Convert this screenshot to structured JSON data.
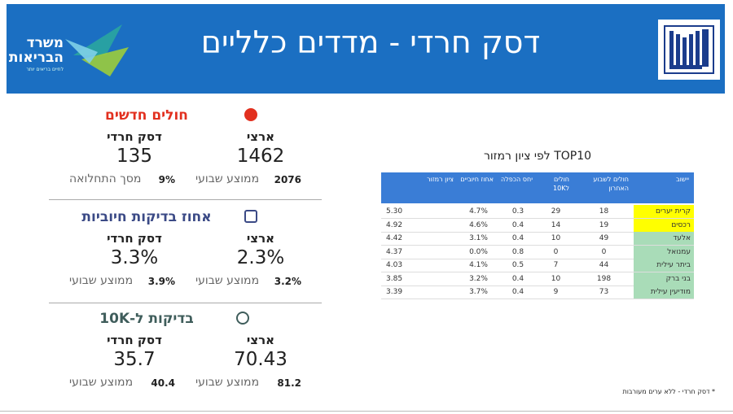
{
  "header": {
    "title": "דסק חרדי - מדדים כלליים",
    "logo_name": "משרד\nהבריאות",
    "logo_slogan": "לחיים בריאים יותר"
  },
  "sections": [
    {
      "title": "חולים חדשים",
      "color": "#e2301f",
      "national": {
        "label": "ארצי",
        "value": "1462",
        "sub_value": "2076",
        "sub_label": "ממוצע שבועי"
      },
      "haredi": {
        "label": "דסק חרדי",
        "value": "135",
        "sub_value": "9%",
        "sub_label": "מסך התחלואה"
      }
    },
    {
      "title": "אחוז בדיקות חיוביות",
      "color": "#3b4a86",
      "national": {
        "label": "ארצי",
        "value": "2.3%",
        "sub_value": "3.2%",
        "sub_label": "ממוצע שבועי"
      },
      "haredi": {
        "label": "דסק חרדי",
        "value": "3.3%",
        "sub_value": "3.9%",
        "sub_label": "ממוצע שבועי"
      }
    },
    {
      "title": "בדיקות ל-10K",
      "color": "#3f5d5b",
      "national": {
        "label": "ארצי",
        "value": "70.43",
        "sub_value": "81.2",
        "sub_label": "ממוצע שבועי"
      },
      "haredi": {
        "label": "דסק חרדי",
        "value": "35.7",
        "sub_value": "40.4",
        "sub_label": "ממוצע שבועי"
      }
    }
  ],
  "table": {
    "title": "TOP10 לפי ציון רמזור",
    "columns": [
      "יישוב",
      "חולים לשבוע האחרון",
      "חולים ל10K",
      "יחס הכפלה",
      "אחוז חיוביים",
      "ציון רמזור"
    ],
    "rows": [
      {
        "color": "#ffff00",
        "cells": [
          "קרית יערים",
          "18",
          "29",
          "0.3",
          "4.7%",
          "5.30"
        ]
      },
      {
        "color": "#ffff00",
        "cells": [
          "רכסים",
          "19",
          "14",
          "0.4",
          "4.6%",
          "4.92"
        ]
      },
      {
        "color": "#a9dcb8",
        "cells": [
          "אלעד",
          "49",
          "10",
          "0.4",
          "3.1%",
          "4.42"
        ]
      },
      {
        "color": "#a9dcb8",
        "cells": [
          "עמנואל",
          "0",
          "0",
          "0.8",
          "0.0%",
          "4.37"
        ]
      },
      {
        "color": "#a9dcb8",
        "cells": [
          "ביתר עילית",
          "44",
          "7",
          "0.5",
          "4.1%",
          "4.03"
        ]
      },
      {
        "color": "#a9dcb8",
        "cells": [
          "בני ברק",
          "198",
          "10",
          "0.4",
          "3.2%",
          "3.85"
        ]
      },
      {
        "color": "#a9dcb8",
        "cells": [
          "מודיעין עילית",
          "73",
          "9",
          "0.4",
          "3.7%",
          "3.39"
        ]
      }
    ]
  },
  "footnote": "* דסק חרדי - ללא ערים מעורבות"
}
